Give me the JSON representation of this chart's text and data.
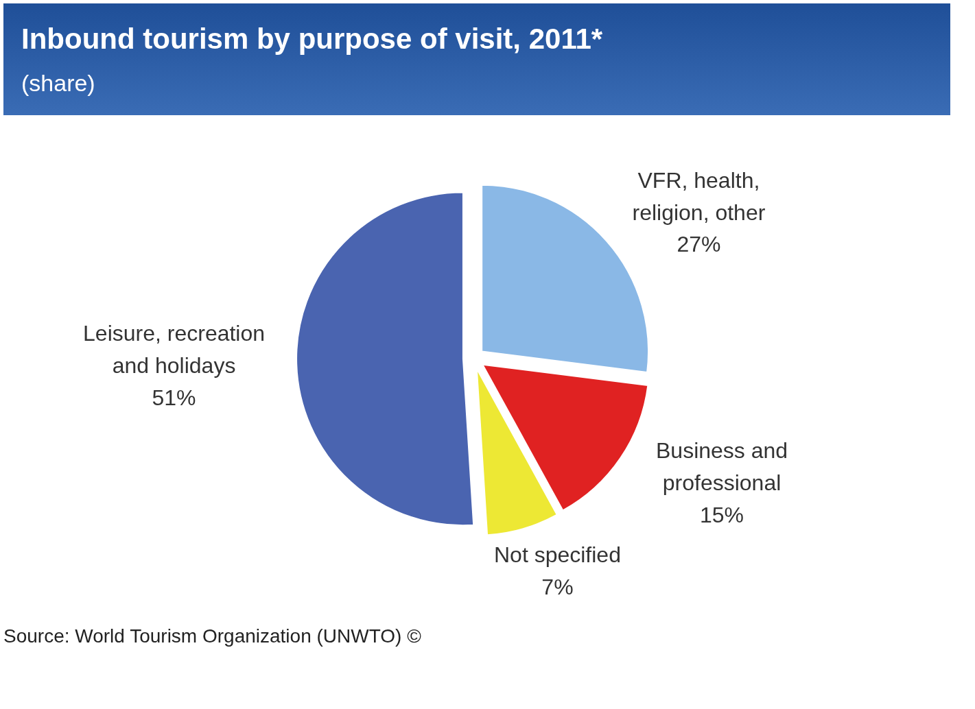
{
  "chart_data": {
    "type": "pie",
    "title": "Inbound tourism by purpose of visit, 2011*",
    "subtitle": "(share)",
    "categories": [
      "VFR, health, religion, other",
      "Business and professional",
      "Not specified",
      "Leisure, recreation and holidays"
    ],
    "values": [
      27,
      15,
      7,
      51
    ],
    "value_labels": [
      "27%",
      "15%",
      "7%",
      "51%"
    ],
    "colors": [
      "#8ab8e6",
      "#e02222",
      "#ede834",
      "#4a64b0"
    ],
    "annotations": [
      "Source: World Tourism Organization (UNWTO) ©"
    ]
  }
}
